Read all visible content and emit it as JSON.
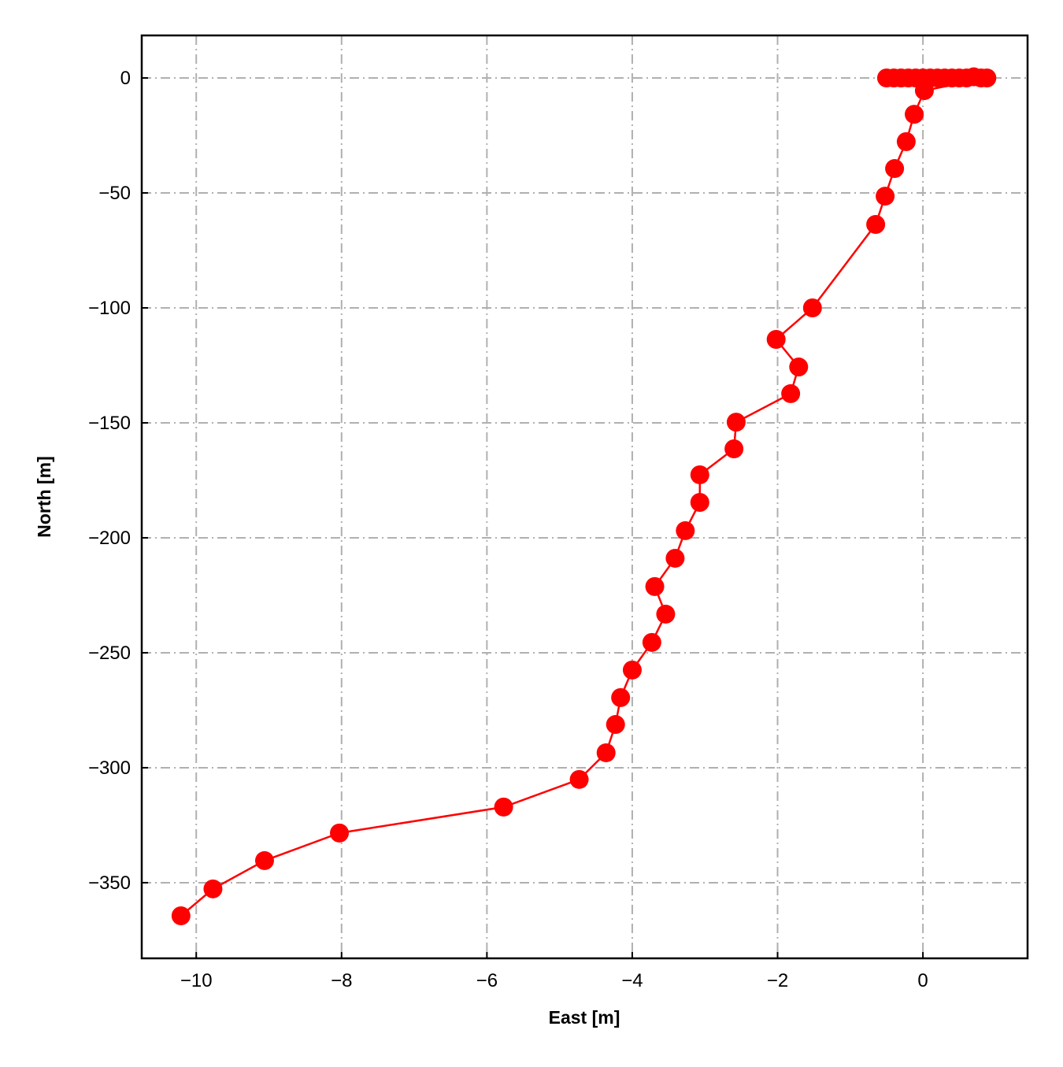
{
  "chart_data": {
    "type": "line",
    "xlabel": "East [m]",
    "ylabel": "North [m]",
    "x": [
      -0.5,
      -0.4,
      -0.3,
      -0.2,
      -0.1,
      0.0,
      0.1,
      0.2,
      0.3,
      0.4,
      0.5,
      0.6,
      0.7,
      0.8,
      0.88,
      0.02,
      -0.12,
      -0.23,
      -0.39,
      -0.52,
      -0.65,
      -1.52,
      -2.02,
      -1.71,
      -1.82,
      -2.57,
      -2.6,
      -3.07,
      -3.07,
      -3.27,
      -3.41,
      -3.69,
      -3.54,
      -3.73,
      -4.0,
      -4.16,
      -4.23,
      -4.36,
      -4.73,
      -5.77,
      -8.03,
      -9.06,
      -9.77,
      -10.21
    ],
    "values": [
      0,
      0,
      0,
      0,
      0,
      0,
      0,
      0,
      0,
      0,
      0,
      0,
      0.5,
      0,
      0,
      -5.5,
      -15.8,
      -27.7,
      -39.4,
      -51.4,
      -63.7,
      -100,
      -113.7,
      -125.7,
      -137.3,
      -149.7,
      -161.3,
      -172.6,
      -184.6,
      -196.9,
      -208.9,
      -221.2,
      -233.2,
      -245.5,
      -257.5,
      -269.5,
      -281.2,
      -293.5,
      -305.1,
      -317.1,
      -328.4,
      -340.4,
      -352.7,
      -364.4
    ],
    "color": "#ff0000",
    "xlim": [
      -10.75,
      1.44
    ],
    "ylim": [
      -382.9,
      18.5
    ],
    "xticks": [
      {
        "value": -10,
        "label": "−10"
      },
      {
        "value": -8,
        "label": "−8"
      },
      {
        "value": -6,
        "label": "−6"
      },
      {
        "value": -4,
        "label": "−4"
      },
      {
        "value": -2,
        "label": "−2"
      },
      0
    ],
    "yticks": [
      0,
      {
        "value": -50,
        "label": "−50"
      },
      {
        "value": -100,
        "label": "−100"
      },
      {
        "value": -150,
        "label": "−150"
      },
      {
        "value": -200,
        "label": "−200"
      },
      {
        "value": -250,
        "label": "−250"
      },
      {
        "value": -300,
        "label": "−300"
      },
      {
        "value": -350,
        "label": "−350"
      }
    ],
    "grid": true
  }
}
